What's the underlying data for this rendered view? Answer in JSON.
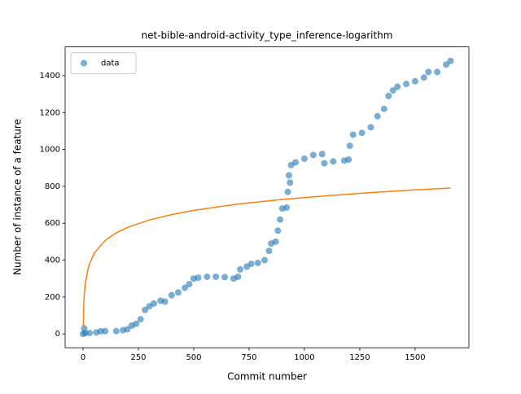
{
  "chart_data": {
    "type": "scatter",
    "title": "net-bible-android-activity_type_inference-logarithm",
    "x_label": "Commit number",
    "y_label": "Number of instance of a feature",
    "xlim": [
      -81,
      1743
    ],
    "ylim": [
      -75,
      1556
    ],
    "xticks": [
      0,
      250,
      500,
      750,
      1000,
      1250,
      1500
    ],
    "yticks": [
      0,
      200,
      400,
      600,
      800,
      1000,
      1200,
      1400
    ],
    "legend": "upper left",
    "series": [
      {
        "name": "data",
        "type": "scatter",
        "color": "#1f77b4",
        "x": [
          0,
          5,
          10,
          30,
          60,
          80,
          100,
          150,
          180,
          200,
          220,
          240,
          260,
          280,
          300,
          320,
          350,
          370,
          400,
          430,
          460,
          480,
          500,
          520,
          560,
          600,
          640,
          680,
          700,
          710,
          740,
          760,
          790,
          820,
          840,
          850,
          870,
          880,
          890,
          900,
          920,
          925,
          930,
          935,
          940,
          960,
          1000,
          1040,
          1080,
          1090,
          1130,
          1180,
          1200,
          1205,
          1220,
          1260,
          1300,
          1330,
          1360,
          1380,
          1400,
          1420,
          1460,
          1500,
          1540,
          1560,
          1600,
          1640,
          1660
        ],
        "values": [
          0,
          30,
          5,
          5,
          8,
          15,
          15,
          15,
          20,
          25,
          45,
          55,
          80,
          130,
          150,
          165,
          180,
          175,
          210,
          225,
          250,
          270,
          300,
          305,
          310,
          310,
          308,
          300,
          310,
          350,
          365,
          380,
          385,
          400,
          450,
          490,
          500,
          560,
          620,
          680,
          685,
          770,
          860,
          820,
          915,
          930,
          950,
          970,
          975,
          925,
          935,
          940,
          945,
          1020,
          1080,
          1090,
          1120,
          1180,
          1220,
          1290,
          1320,
          1340,
          1355,
          1370,
          1390,
          1420,
          1420,
          1460,
          1480
        ]
      },
      {
        "type": "line",
        "color": "#ff7f0e",
        "x": [
          1,
          3,
          5,
          10,
          25,
          50,
          100,
          150,
          200,
          300,
          400,
          500,
          700,
          900,
          1100,
          1300,
          1500,
          1660
        ],
        "values": [
          42,
          153,
          205,
          275,
          367,
          437,
          507,
          548,
          577,
          618,
          647,
          670,
          704,
          729,
          749,
          766,
          781,
          791
        ]
      }
    ]
  }
}
